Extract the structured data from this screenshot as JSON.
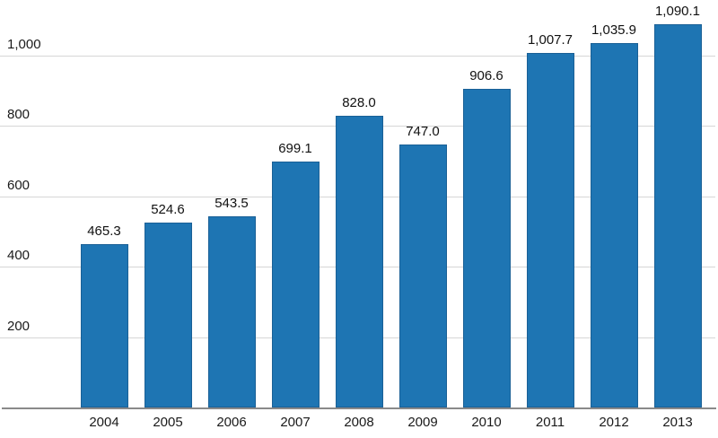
{
  "chart_data": {
    "type": "bar",
    "title": "",
    "xlabel": "",
    "ylabel": "",
    "categories": [
      "2004",
      "2005",
      "2006",
      "2007",
      "2008",
      "2009",
      "2010",
      "2011",
      "2012",
      "2013"
    ],
    "values": [
      465.3,
      524.6,
      543.5,
      699.1,
      828.0,
      747.0,
      906.6,
      1007.7,
      1035.9,
      1090.1
    ],
    "value_labels": [
      "465.3",
      "524.6",
      "543.5",
      "699.1",
      "828.0",
      "747.0",
      "906.6",
      "1,007.7",
      "1,035.9",
      "1,090.1"
    ],
    "ylim": [
      0,
      1160
    ],
    "yticks": [
      200,
      400,
      600,
      800,
      1000
    ],
    "ytick_labels": [
      "200",
      "400",
      "600",
      "800",
      "1,000"
    ],
    "grid": true,
    "legend_position": "none",
    "colors": {
      "bar_fill": "#1e75b3",
      "bar_border": "#1a6096",
      "gridline": "#d6d6d6",
      "axis_line": "#8a8a8a",
      "text": "#1a1a1a"
    }
  }
}
